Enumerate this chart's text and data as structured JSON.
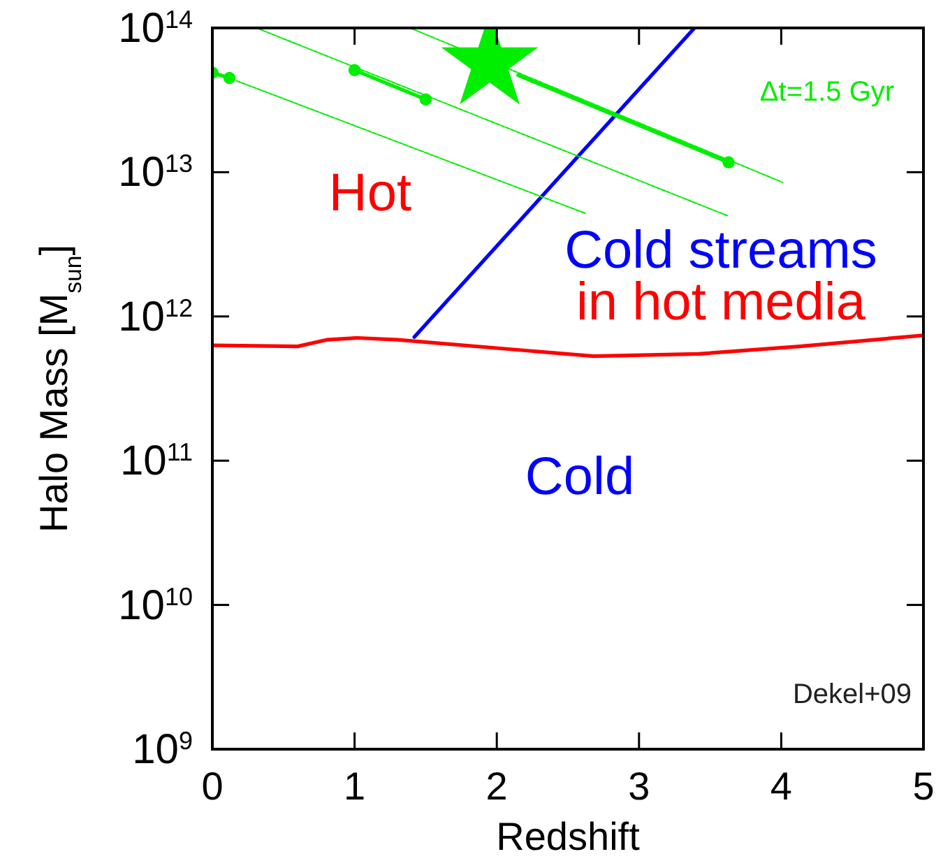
{
  "chart_data": {
    "type": "line",
    "xlabel": "Redshift",
    "ylabel": "Halo Mass [M$_{sun}$]",
    "xlim": [
      0,
      5
    ],
    "xticks": [
      0,
      1,
      2,
      3,
      4,
      5
    ],
    "ylim": [
      1000000000.0,
      100000000000000.0
    ],
    "yticks": [
      {
        "value": 1000000000.0,
        "label": "10$^{9}$"
      },
      {
        "value": 10000000000.0,
        "label": "10$^{10}$"
      },
      {
        "value": 100000000000.0,
        "label": "10$^{11}$"
      },
      {
        "value": 1000000000000.0,
        "label": "10$^{12}$"
      },
      {
        "value": 10000000000000.0,
        "label": "10$^{13}$"
      },
      {
        "value": 100000000000000.0,
        "label": "10$^{14}$"
      }
    ],
    "log": "y",
    "grid": false,
    "series": [
      {
        "color": "#ff0000",
        "line_style": "solid",
        "x": [
          0,
          0.6,
          0.81,
          1.02,
          1.3,
          2.68,
          3.42,
          4.13,
          5.0
        ],
        "values": [
          630000000000.0,
          620000000000.0,
          690000000000.0,
          710000000000.0,
          690000000000.0,
          530000000000.0,
          550000000000.0,
          620000000000.0,
          740000000000.0
        ]
      },
      {
        "color": "#0000ff",
        "line_style": "solid",
        "x": [
          1.42,
          3.39
        ],
        "values": [
          720000000000.0,
          100000000000000.0
        ]
      },
      {
        "color": "#00ee00",
        "line_style": "dotted",
        "x": [
          0.17,
          2.62
        ],
        "values": [
          43000000000000.0,
          5200000000000.0
        ]
      },
      {
        "color": "#00ee00",
        "line_style": "dotted",
        "x": [
          0.31,
          3.62
        ],
        "values": [
          100000000000000.0,
          5000000000000.0
        ]
      },
      {
        "color": "#00ee00",
        "line_style": "dotted",
        "x": [
          1.39,
          4.01
        ],
        "values": [
          100000000000000.0,
          8500000000000.0
        ]
      },
      {
        "color": "#00ee00",
        "line_style": "solid",
        "marker": "circle",
        "x": [
          0,
          0.12
        ],
        "values": [
          49000000000000.0,
          45000000000000.0
        ]
      },
      {
        "color": "#00ee00",
        "line_style": "solid",
        "marker": "circle",
        "x": [
          1.0,
          1.5
        ],
        "values": [
          51000000000000.0,
          32000000000000.0
        ]
      },
      {
        "color": "#00ee00",
        "line_style": "solid",
        "x": [
          2.15,
          3.63
        ],
        "values": [
          47000000000000.0,
          11700000000000.0
        ]
      },
      {
        "type": "scatter",
        "color": "#00ee00",
        "marker": "circle",
        "x": [
          3.63
        ],
        "values": [
          11700000000000.0
        ]
      },
      {
        "type": "scatter",
        "color": "#00ee00",
        "marker": "star",
        "x": [
          1.95
        ],
        "values": [
          57000000000000.0
        ]
      }
    ],
    "annotations": [
      "Hot",
      "Cold streams",
      "in hot media",
      "Cold",
      "Δt=1.5 Gyr",
      "Dekel+09"
    ]
  }
}
